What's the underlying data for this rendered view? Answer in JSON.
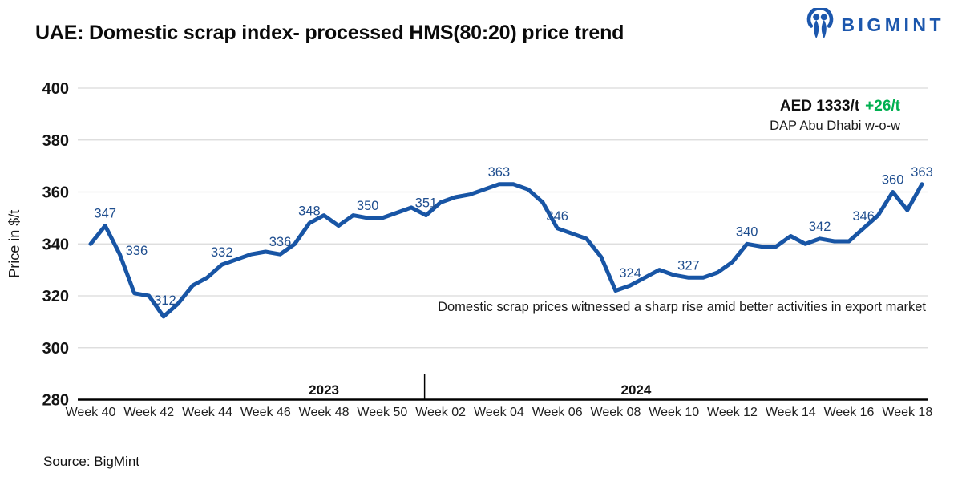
{
  "header": {
    "title": "UAE: Domestic scrap index- processed HMS(80:20) price trend",
    "logo_text": "BIGMINT"
  },
  "annotation": {
    "price": "AED 1333/t",
    "change": "+26/t",
    "basis": "DAP Abu Dhabi w-o-w",
    "note": "Domestic scrap prices witnessed a sharp rise amid better activities in export market"
  },
  "footer": {
    "source": "Source: BigMint"
  },
  "colors": {
    "line": "#1855a5",
    "point_label": "#1f4e8f",
    "change_green": "#00b050",
    "grid": "#d9d9d9",
    "axis": "#000000",
    "logo_blue": "#1c57ad"
  },
  "chart_data": {
    "type": "line",
    "title": "UAE: Domestic scrap index- processed HMS(80:20) price trend",
    "xlabel": "",
    "ylabel": "Price in $/t",
    "ylim": [
      280,
      400
    ],
    "yticks": [
      280,
      300,
      320,
      340,
      360,
      380,
      400
    ],
    "grid": true,
    "legend": false,
    "values": [
      340,
      347,
      336,
      321,
      320,
      312,
      317,
      324,
      327,
      332,
      334,
      336,
      337,
      336,
      340,
      348,
      351,
      347,
      351,
      350,
      350,
      352,
      354,
      351,
      356,
      358,
      359,
      361,
      363,
      363,
      361,
      356,
      346,
      344,
      342,
      335,
      322,
      324,
      327,
      330,
      328,
      327,
      327,
      329,
      333,
      340,
      339,
      339,
      343,
      340,
      342,
      341,
      341,
      346,
      351,
      360,
      353,
      363
    ],
    "point_labels": {
      "1": 347,
      "2": 336,
      "5": 312,
      "9": 332,
      "13": 336,
      "15": 348,
      "19": 350,
      "23": 351,
      "28": 363,
      "32": 346,
      "37": 324,
      "41": 327,
      "45": 340,
      "50": 342,
      "53": 346,
      "55": 360,
      "57": 363
    },
    "label_offsets": {
      "2": [
        21,
        11
      ],
      "5": [
        2,
        -5
      ]
    },
    "x_tick_every": 4,
    "x_tick_labels": [
      "Week 40",
      "Week 42",
      "Week 44",
      "Week 46",
      "Week 48",
      "Week 50",
      "Week 02",
      "Week 04",
      "Week 06",
      "Week 08",
      "Week 10",
      "Week 12",
      "Week 14",
      "Week 16",
      "Week 18"
    ],
    "year_groups": [
      {
        "label": "2023",
        "center_index": 16
      },
      {
        "label": "2024",
        "center_index": 37.4
      }
    ],
    "year_divider_index": 22.9
  }
}
